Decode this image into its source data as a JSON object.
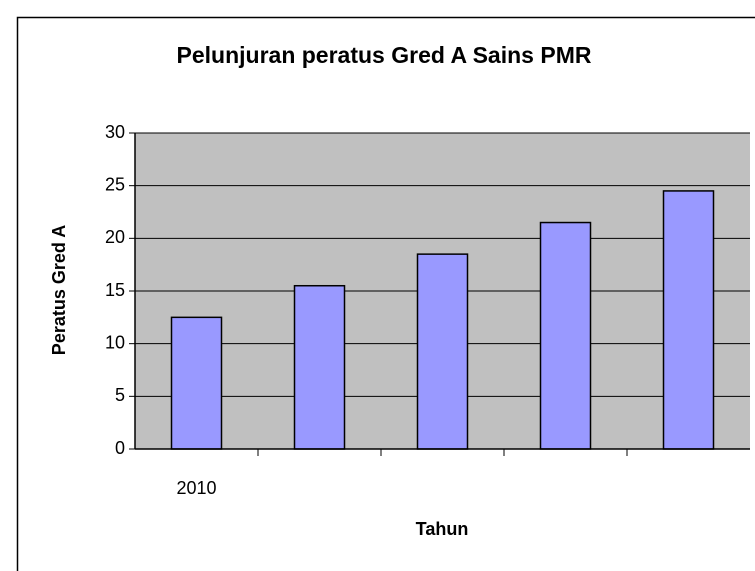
{
  "chart_data": {
    "type": "bar",
    "title": "Pelunjuran peratus Gred A Sains PMR",
    "x_label": "Tahun",
    "y_label": "Peratus Gred A",
    "categories": [
      "2010",
      null,
      null,
      null,
      null
    ],
    "values": [
      12.5,
      15.5,
      18.5,
      21.5,
      24.5
    ],
    "color": "#9999ff",
    "ylim": [
      0,
      30
    ],
    "yticks": [
      0,
      5,
      10,
      15,
      20,
      25,
      30
    ],
    "grid": true
  }
}
